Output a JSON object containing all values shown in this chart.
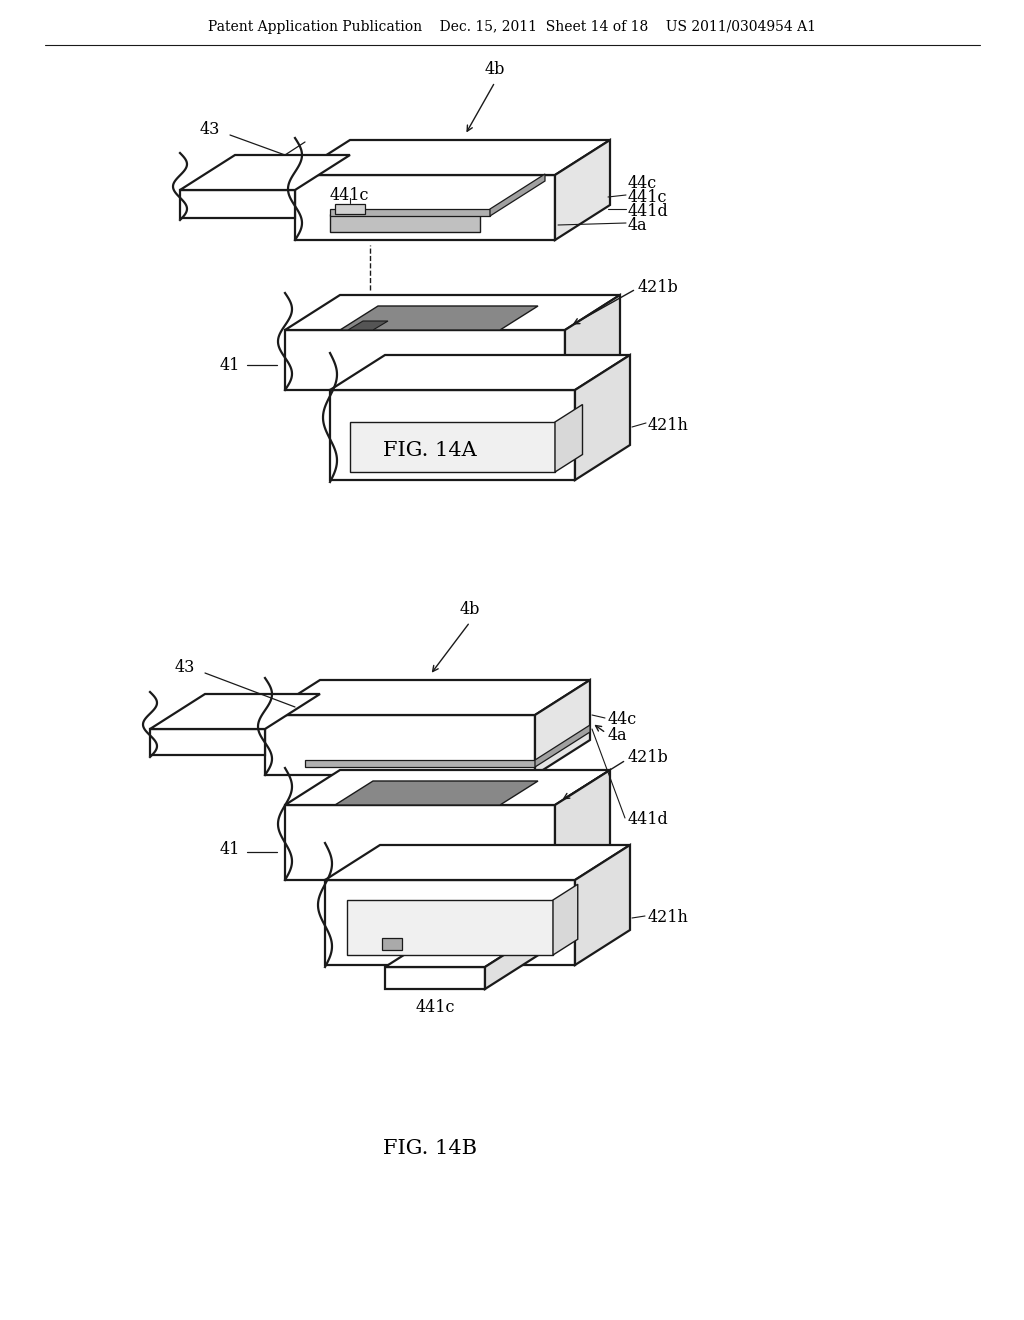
{
  "background_color": "#ffffff",
  "line_color": "#1a1a1a",
  "header_text": "Patent Application Publication    Dec. 15, 2011  Sheet 14 of 18    US 2011/0304954 A1",
  "header_fontsize": 10.0,
  "fig14a_label": "FIG. 14A",
  "fig14b_label": "FIG. 14B",
  "label_fontsize": 15,
  "annotation_fontsize": 11.5
}
